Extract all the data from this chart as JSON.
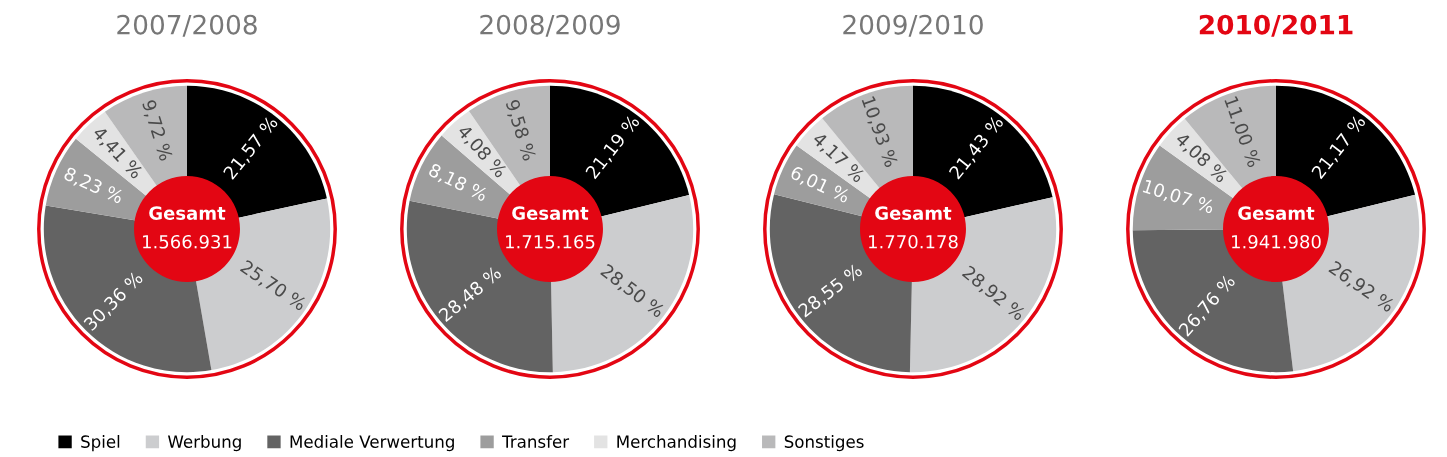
{
  "chart_data": [
    {
      "type": "donut",
      "title": "2007/2008",
      "legend": "bottom",
      "categories": [
        "Spiel",
        "Werbung",
        "Mediale Verwertung",
        "Transfer",
        "Merchandising",
        "Sonstiges"
      ],
      "values": [
        21.57,
        25.7,
        30.36,
        8.23,
        4.41,
        9.72
      ],
      "value_labels": [
        "21,57 %",
        "25,70 %",
        "30,36 %",
        "8,23 %",
        "4,41 %",
        "9,72 %"
      ],
      "colors": [
        "#000000",
        "#cccdcf",
        "#636363",
        "#9d9d9d",
        "#e3e3e3",
        "#b9b9ba"
      ],
      "annotations": [
        "Gesamt",
        "1.566.931"
      ]
    },
    {
      "type": "donut",
      "title": "2008/2009",
      "categories": [
        null,
        null,
        null,
        null,
        null,
        null
      ],
      "values": [
        21.19,
        28.5,
        28.48,
        8.18,
        4.08,
        9.58
      ],
      "value_labels": [
        "21,19 %",
        "28,50 %",
        "28,48 %",
        "8,18 %",
        "4,08 %",
        "9,58 %"
      ],
      "colors": [
        "#000000",
        "#cccdcf",
        "#636363",
        "#9d9d9d",
        "#e3e3e3",
        "#b9b9ba"
      ],
      "annotations": [
        "Gesamt",
        "1.715.165"
      ]
    },
    {
      "type": "donut",
      "title": "2009/2010",
      "categories": [
        null,
        null,
        null,
        null,
        null,
        null
      ],
      "values": [
        21.43,
        28.92,
        28.55,
        6.01,
        4.17,
        10.93
      ],
      "value_labels": [
        "21,43 %",
        "28,92 %",
        "28,55 %",
        "6,01 %",
        "4,17 %",
        "10,93 %"
      ],
      "colors": [
        "#000000",
        "#cccdcf",
        "#636363",
        "#9d9d9d",
        "#e3e3e3",
        "#b9b9ba"
      ],
      "annotations": [
        "Gesamt",
        "1.770.178"
      ]
    },
    {
      "type": "donut",
      "title": "2010/2011",
      "categories": [
        null,
        null,
        null,
        null,
        null,
        null
      ],
      "values": [
        21.17,
        26.92,
        26.76,
        10.07,
        4.08,
        11.0
      ],
      "value_labels": [
        "21,17 %",
        "26,92 %",
        "26,76 %",
        "10,07 %",
        "4,08 %",
        "11,00 %"
      ],
      "colors": [
        "#000000",
        "#cccdcf",
        "#636363",
        "#9d9d9d",
        "#e3e3e3",
        "#b9b9ba"
      ],
      "annotations": [
        "Gesamt",
        "1.941.980"
      ]
    }
  ]
}
